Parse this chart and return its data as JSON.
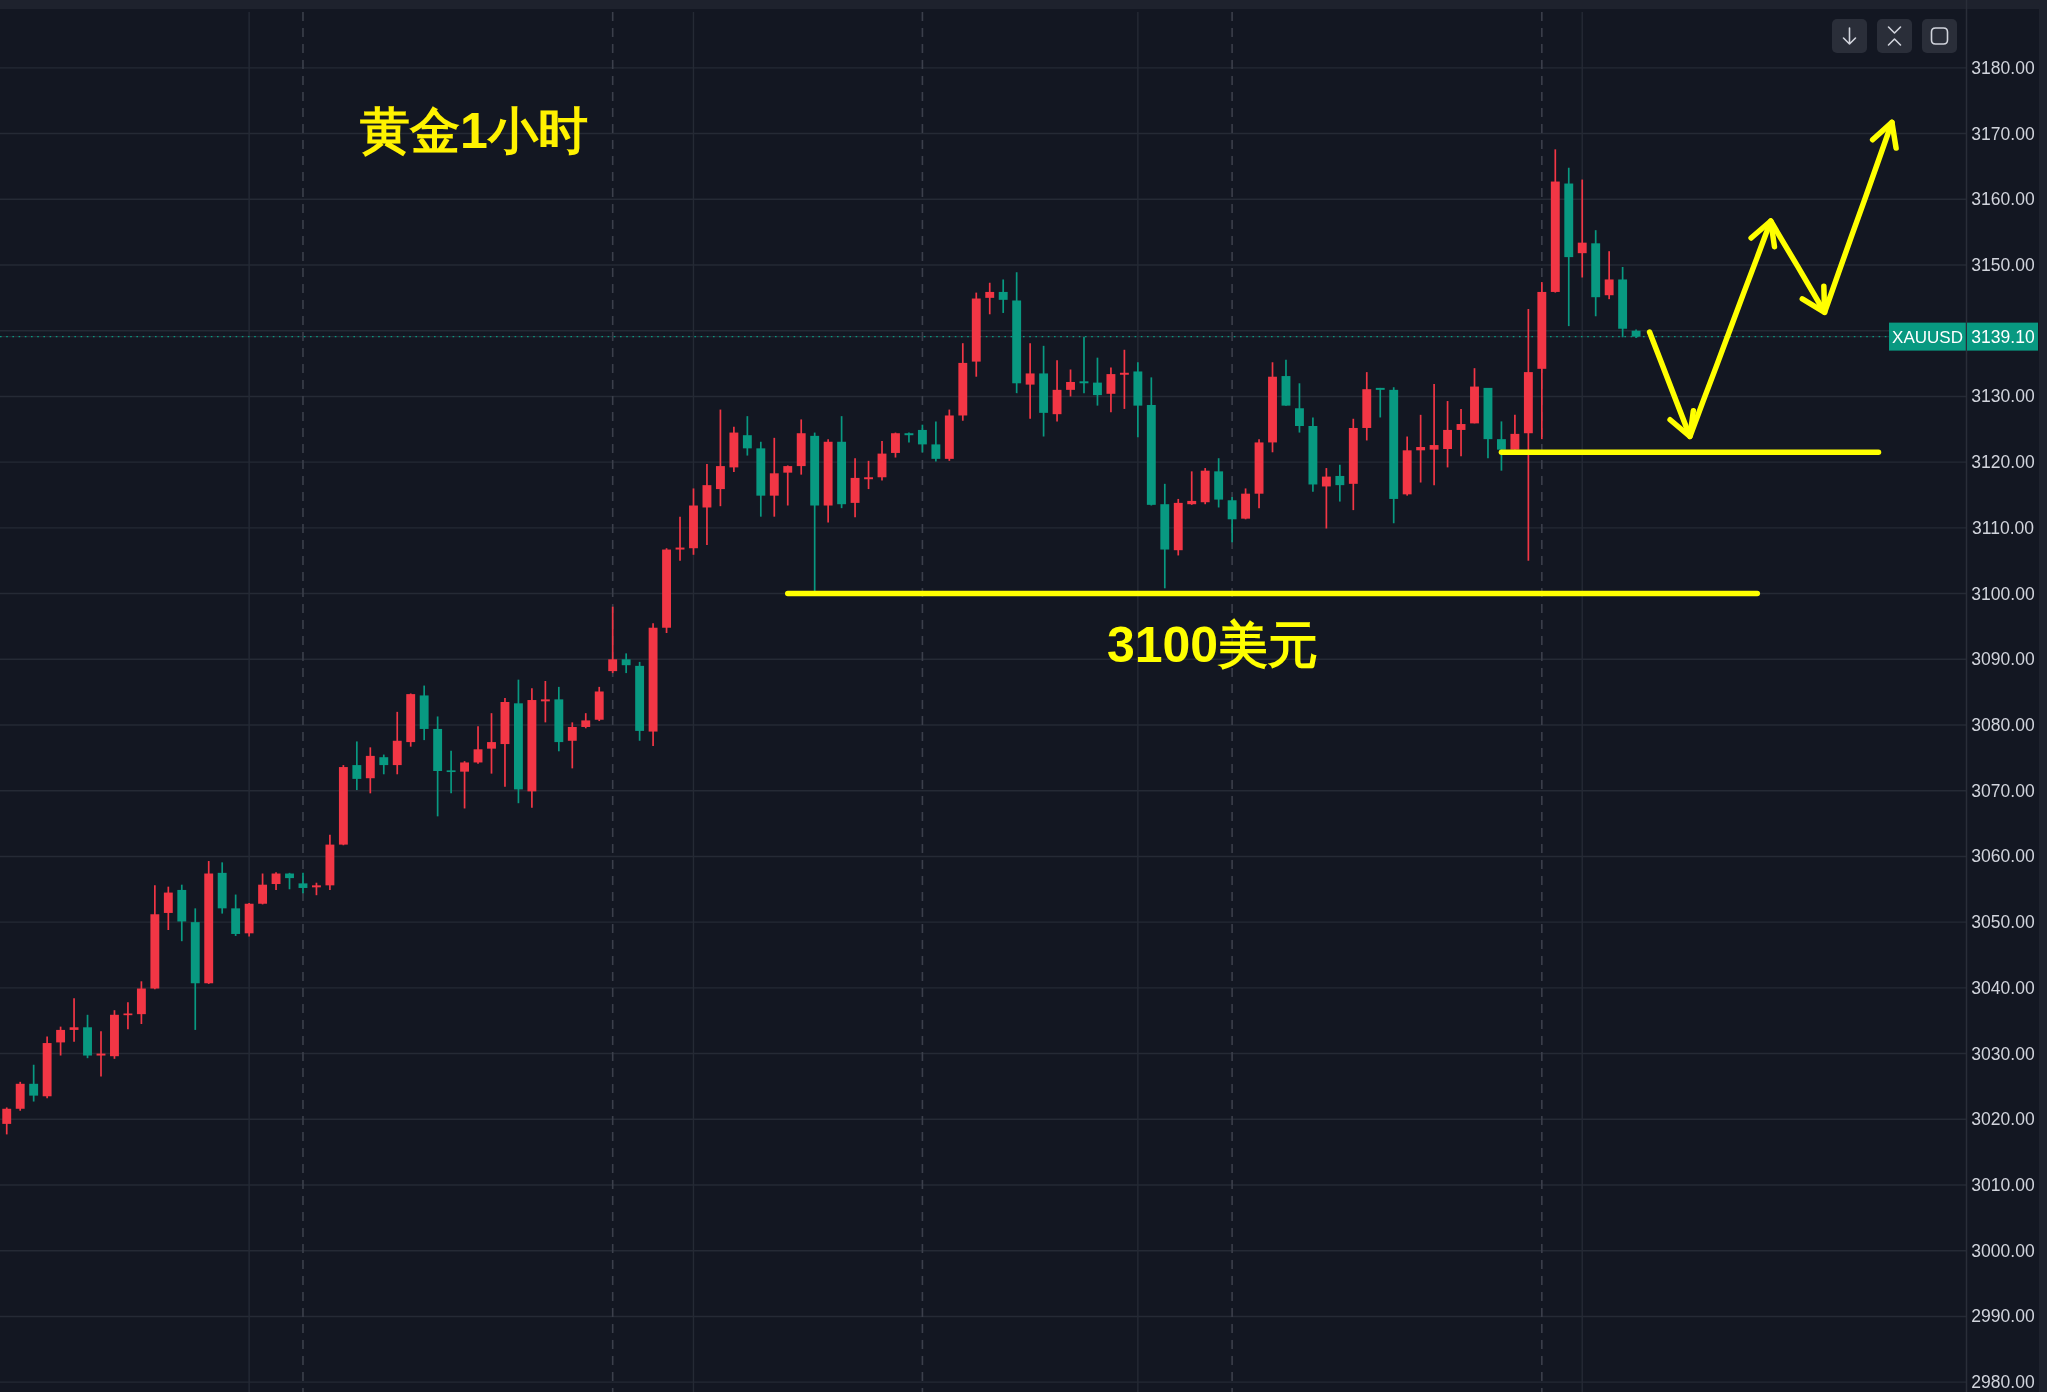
{
  "chart_data": {
    "type": "candlestick",
    "title": "黄金1小时",
    "categories": [
      null,
      null,
      null,
      null,
      null,
      null,
      null,
      null,
      null,
      null,
      null,
      null,
      null,
      null,
      null,
      null,
      null,
      null,
      null,
      null,
      null,
      null,
      null,
      null,
      null,
      null,
      null,
      null,
      null,
      null,
      null,
      null,
      null,
      null,
      null,
      null,
      null,
      null,
      null,
      null,
      null,
      null,
      null,
      null,
      null,
      null,
      null,
      null,
      null,
      null,
      null,
      null,
      null,
      null,
      null,
      null,
      null,
      null,
      null,
      null,
      null,
      null,
      null,
      null,
      null,
      null,
      null,
      null,
      null,
      null,
      null,
      null,
      null,
      null,
      null,
      null,
      null,
      null,
      null,
      null,
      null,
      null,
      null,
      null,
      null,
      null,
      null,
      null,
      null,
      null,
      null,
      null,
      null,
      null,
      null,
      null,
      null,
      null,
      null,
      null,
      null,
      null,
      null,
      null,
      null,
      null,
      null,
      null,
      null,
      null,
      null,
      null,
      null,
      null,
      null,
      null,
      null,
      null,
      null,
      null,
      null,
      null,
      null,
      null,
      null,
      null,
      null,
      null,
      null,
      null,
      null,
      null,
      null,
      null,
      null,
      null,
      null,
      null,
      null,
      null,
      null,
      null,
      null,
      null,
      null,
      null
    ],
    "ohlc": [
      [
        3019.3,
        3021.8,
        3017.7,
        3021.6
      ],
      [
        3021.6,
        3025.7,
        3021.3,
        3025.4
      ],
      [
        3025.4,
        3028.3,
        3022.7,
        3023.6
      ],
      [
        3023.5,
        3032.6,
        3023.2,
        3031.6
      ],
      [
        3031.7,
        3034.1,
        3029.7,
        3033.6
      ],
      [
        3033.6,
        3038.4,
        3031.8,
        3034.0
      ],
      [
        3034.0,
        3035.9,
        3029.3,
        3029.7
      ],
      [
        3029.7,
        3033.4,
        3026.5,
        3030.0
      ],
      [
        3029.6,
        3036.6,
        3029.2,
        3035.9
      ],
      [
        3035.9,
        3037.8,
        3033.7,
        3036.1
      ],
      [
        3036.0,
        3041.0,
        3034.5,
        3039.9
      ],
      [
        3039.9,
        3055.6,
        3039.8,
        3051.2
      ],
      [
        3051.4,
        3055.4,
        3048.8,
        3054.5
      ],
      [
        3054.9,
        3055.7,
        3047.1,
        3050.1
      ],
      [
        3050.0,
        3052.1,
        3033.6,
        3040.7
      ],
      [
        3040.7,
        3059.3,
        3040.6,
        3057.4
      ],
      [
        3057.5,
        3059.1,
        3051.3,
        3052.1
      ],
      [
        3052.1,
        3054.2,
        3047.9,
        3048.2
      ],
      [
        3048.3,
        3052.9,
        3047.8,
        3052.8
      ],
      [
        3052.8,
        3057.4,
        3052.7,
        3055.7
      ],
      [
        3055.8,
        3057.6,
        3054.9,
        3057.4
      ],
      [
        3057.4,
        3057.5,
        3055.0,
        3056.7
      ],
      [
        3055.9,
        3057.5,
        3054.4,
        3055.2
      ],
      [
        3055.3,
        3056.0,
        3054.1,
        3055.6
      ],
      [
        3055.6,
        3063.3,
        3054.9,
        3061.8
      ],
      [
        3061.8,
        3073.9,
        3061.7,
        3073.6
      ],
      [
        3073.9,
        3077.5,
        3070.1,
        3071.8
      ],
      [
        3071.9,
        3076.6,
        3069.6,
        3075.3
      ],
      [
        3075.1,
        3075.5,
        3072.5,
        3073.9
      ],
      [
        3073.9,
        3082.0,
        3072.5,
        3077.6
      ],
      [
        3077.4,
        3084.8,
        3076.7,
        3084.7
      ],
      [
        3084.5,
        3086.0,
        3077.7,
        3079.4
      ],
      [
        3079.4,
        3081.3,
        3066.1,
        3073.0
      ],
      [
        3073.1,
        3076.1,
        3069.6,
        3072.9
      ],
      [
        3072.9,
        3074.5,
        3067.3,
        3074.3
      ],
      [
        3074.3,
        3079.8,
        3074.1,
        3076.3
      ],
      [
        3076.4,
        3081.8,
        3072.6,
        3077.4
      ],
      [
        3077.1,
        3084.1,
        3070.6,
        3083.5
      ],
      [
        3083.3,
        3086.9,
        3068.1,
        3070.2
      ],
      [
        3069.9,
        3085.6,
        3067.4,
        3083.8
      ],
      [
        3083.6,
        3086.7,
        3080.4,
        3083.9
      ],
      [
        3083.9,
        3085.8,
        3076.0,
        3077.4
      ],
      [
        3077.6,
        3080.4,
        3073.4,
        3079.7
      ],
      [
        3079.7,
        3081.8,
        3079.5,
        3080.7
      ],
      [
        3080.8,
        3085.8,
        3080.6,
        3085.1
      ],
      [
        3088.2,
        3098.0,
        3087.9,
        3090.0
      ],
      [
        3090.0,
        3090.9,
        3087.9,
        3089.1
      ],
      [
        3089.0,
        3089.6,
        3077.6,
        3079.1
      ],
      [
        3079.0,
        3095.5,
        3076.8,
        3094.8
      ],
      [
        3094.8,
        3106.9,
        3094.0,
        3106.7
      ],
      [
        3106.7,
        3111.7,
        3105.0,
        3107.0
      ],
      [
        3106.9,
        3116.0,
        3105.9,
        3113.4
      ],
      [
        3113.1,
        3119.7,
        3107.4,
        3116.5
      ],
      [
        3115.9,
        3128.0,
        3113.3,
        3119.4
      ],
      [
        3119.2,
        3125.4,
        3118.5,
        3124.5
      ],
      [
        3124.1,
        3127.0,
        3121.0,
        3122.1
      ],
      [
        3122.1,
        3123.1,
        3111.7,
        3114.9
      ],
      [
        3114.9,
        3123.7,
        3111.7,
        3118.3
      ],
      [
        3118.4,
        3119.5,
        3113.4,
        3119.4
      ],
      [
        3119.4,
        3126.5,
        3118.1,
        3124.4
      ],
      [
        3124.0,
        3124.5,
        3100.2,
        3113.4
      ],
      [
        3113.4,
        3123.5,
        3110.8,
        3123.1
      ],
      [
        3123.1,
        3127.0,
        3113.0,
        3113.6
      ],
      [
        3113.8,
        3120.6,
        3111.6,
        3117.6
      ],
      [
        3117.4,
        3120.2,
        3115.9,
        3117.7
      ],
      [
        3117.7,
        3123.2,
        3117.2,
        3121.3
      ],
      [
        3121.4,
        3124.5,
        3120.7,
        3124.4
      ],
      [
        3124.4,
        3124.5,
        3123.0,
        3124.1
      ],
      [
        3124.9,
        3125.7,
        3121.5,
        3122.7
      ],
      [
        3122.7,
        3126.2,
        3120.1,
        3120.5
      ],
      [
        3120.5,
        3128.0,
        3120.2,
        3127.1
      ],
      [
        3127.1,
        3138.1,
        3126.3,
        3135.1
      ],
      [
        3135.3,
        3145.8,
        3133.0,
        3144.9
      ],
      [
        3145.0,
        3147.3,
        3142.5,
        3145.9
      ],
      [
        3145.9,
        3147.8,
        3142.7,
        3144.7
      ],
      [
        3144.6,
        3148.9,
        3130.5,
        3132.0
      ],
      [
        3131.8,
        3138.1,
        3126.6,
        3133.5
      ],
      [
        3133.5,
        3137.7,
        3123.9,
        3127.5
      ],
      [
        3127.3,
        3135.5,
        3126.2,
        3131.0
      ],
      [
        3131.0,
        3134.1,
        3130.0,
        3132.2
      ],
      [
        3132.3,
        3139.1,
        3130.5,
        3132.0
      ],
      [
        3132.1,
        3135.9,
        3128.6,
        3130.2
      ],
      [
        3130.4,
        3134.4,
        3127.6,
        3133.4
      ],
      [
        3133.3,
        3137.1,
        3128.1,
        3133.6
      ],
      [
        3133.8,
        3135.2,
        3123.8,
        3128.6
      ],
      [
        3128.7,
        3132.9,
        3113.4,
        3113.5
      ],
      [
        3113.6,
        3116.7,
        3100.8,
        3106.7
      ],
      [
        3106.6,
        3114.4,
        3105.8,
        3113.8
      ],
      [
        3113.6,
        3118.6,
        3113.5,
        3114.1
      ],
      [
        3113.9,
        3119.1,
        3113.6,
        3118.7
      ],
      [
        3118.6,
        3120.6,
        3113.1,
        3114.3
      ],
      [
        3114.2,
        3114.7,
        3107.8,
        3111.3
      ],
      [
        3111.4,
        3116.0,
        3111.3,
        3115.2
      ],
      [
        3115.2,
        3123.5,
        3113.0,
        3123.0
      ],
      [
        3123.0,
        3135.2,
        3121.5,
        3133.0
      ],
      [
        3133.1,
        3135.6,
        3128.6,
        3128.6
      ],
      [
        3128.2,
        3132.0,
        3124.5,
        3125.5
      ],
      [
        3125.5,
        3126.8,
        3115.5,
        3116.6
      ],
      [
        3116.3,
        3119.1,
        3109.9,
        3117.8
      ],
      [
        3117.9,
        3119.6,
        3114.0,
        3116.5
      ],
      [
        3116.7,
        3126.6,
        3112.7,
        3125.2
      ],
      [
        3125.2,
        3133.7,
        3123.3,
        3131.1
      ],
      [
        3131.3,
        3131.3,
        3126.8,
        3131.0
      ],
      [
        3131.0,
        3131.4,
        3110.7,
        3114.4
      ],
      [
        3115.1,
        3123.9,
        3114.9,
        3121.8
      ],
      [
        3121.8,
        3127.2,
        3116.9,
        3122.3
      ],
      [
        3121.9,
        3131.9,
        3116.5,
        3122.6
      ],
      [
        3122.0,
        3129.3,
        3119.2,
        3124.9
      ],
      [
        3124.9,
        3128.1,
        3120.9,
        3125.8
      ],
      [
        3125.9,
        3134.3,
        3125.9,
        3131.5
      ],
      [
        3131.3,
        3131.3,
        3120.6,
        3123.5
      ],
      [
        3123.5,
        3126.2,
        3118.7,
        3121.9
      ],
      [
        3121.9,
        3127.2,
        3121.9,
        3124.3
      ],
      [
        3124.4,
        3143.3,
        3105.0,
        3133.7
      ],
      [
        3134.2,
        3147.4,
        3123.5,
        3145.9
      ],
      [
        3145.9,
        3167.6,
        3145.8,
        3162.7
      ],
      [
        3162.4,
        3164.8,
        3140.7,
        3151.2
      ],
      [
        3151.8,
        3163.0,
        3148.1,
        3153.4
      ],
      [
        3153.3,
        3155.3,
        3142.2,
        3145.1
      ],
      [
        3145.4,
        3152.1,
        3144.8,
        3147.8
      ],
      [
        3147.8,
        3149.7,
        3139.0,
        3140.3
      ],
      [
        3140.0,
        3140.2,
        3138.9,
        3139.1
      ],
      null,
      null,
      null,
      null,
      null,
      null,
      null,
      null,
      null,
      null,
      null,
      null,
      null,
      null,
      null,
      null,
      null,
      null,
      null,
      null,
      null,
      null,
      null,
      null
    ],
    "colors": [
      "#f23645",
      "#f23645",
      "#089981",
      "#f23645",
      "#f23645",
      "#f23645",
      "#089981",
      "#f23645",
      "#f23645",
      "#f23645",
      "#f23645",
      "#f23645",
      "#f23645",
      "#089981",
      "#089981",
      "#f23645",
      "#089981",
      "#089981",
      "#f23645",
      "#f23645",
      "#f23645",
      "#089981",
      "#089981",
      "#f23645",
      "#f23645",
      "#f23645",
      "#089981",
      "#f23645",
      "#089981",
      "#f23645",
      "#f23645",
      "#089981",
      "#089981",
      "#089981",
      "#f23645",
      "#f23645",
      "#f23645",
      "#f23645",
      "#089981",
      "#f23645",
      "#f23645",
      "#089981",
      "#f23645",
      "#f23645",
      "#f23645",
      "#f23645",
      "#089981",
      "#089981",
      "#f23645",
      "#f23645",
      "#f23645",
      "#f23645",
      "#f23645",
      "#f23645",
      "#f23645",
      "#089981",
      "#089981",
      "#f23645",
      "#f23645",
      "#f23645",
      "#089981",
      "#f23645",
      "#089981",
      "#f23645",
      "#f23645",
      "#f23645",
      "#f23645",
      "#089981",
      "#089981",
      "#089981",
      "#f23645",
      "#f23645",
      "#f23645",
      "#f23645",
      "#089981",
      "#089981",
      "#f23645",
      "#089981",
      "#f23645",
      "#f23645",
      "#089981",
      "#089981",
      "#f23645",
      "#f23645",
      "#089981",
      "#089981",
      "#089981",
      "#f23645",
      "#f23645",
      "#f23645",
      "#089981",
      "#089981",
      "#f23645",
      "#f23645",
      "#f23645",
      "#089981",
      "#089981",
      "#089981",
      "#f23645",
      "#089981",
      "#f23645",
      "#f23645",
      "#089981",
      "#089981",
      "#f23645",
      "#f23645",
      "#f23645",
      "#f23645",
      "#f23645",
      "#f23645",
      "#089981",
      "#089981",
      "#f23645",
      "#f23645",
      "#f23645",
      "#f23645",
      "#089981",
      "#f23645",
      "#089981",
      "#f23645",
      "#089981",
      "#089981",
      null,
      null,
      null,
      null,
      null,
      null,
      null,
      null,
      null,
      null,
      null,
      null,
      null,
      null,
      null,
      null,
      null,
      null,
      null,
      null,
      null,
      null,
      null,
      null
    ],
    "series": [
      {
        "type": "line",
        "name": "3100美元",
        "color": "#ffff00",
        "values": [
          null,
          null,
          null,
          null,
          null,
          null,
          null,
          null,
          null,
          null,
          null,
          null,
          null,
          null,
          null,
          null,
          null,
          null,
          null,
          null,
          null,
          null,
          null,
          null,
          null,
          null,
          null,
          null,
          null,
          null,
          null,
          null,
          null,
          null,
          null,
          null,
          null,
          null,
          null,
          null,
          null,
          null,
          null,
          null,
          null,
          null,
          null,
          null,
          null,
          null,
          null,
          null,
          null,
          null,
          null,
          null,
          null,
          null,
          3100,
          3100,
          3100,
          3100,
          3100,
          3100,
          3100,
          3100,
          3100,
          3100,
          3100,
          3100,
          3100,
          3100,
          3100,
          3100,
          3100,
          3100,
          3100,
          3100,
          3100,
          3100,
          3100,
          3100,
          3100,
          3100,
          3100,
          3100,
          3100,
          3100,
          3100,
          3100,
          3100,
          3100,
          3100,
          3100,
          3100,
          3100,
          3100,
          3100,
          3100,
          3100,
          3100,
          3100,
          3100,
          3100,
          3100,
          3100,
          3100,
          3100,
          3100,
          3100,
          3100,
          3100,
          3100,
          3100,
          3100,
          3100,
          3100,
          3100,
          3100,
          3100,
          3100,
          3100,
          3100,
          3100,
          3100,
          3100,
          3100,
          3100,
          3100,
          3100,
          3100,
          null,
          null,
          null,
          null,
          null,
          null,
          null,
          null,
          null,
          null,
          null,
          null,
          null,
          null,
          null
        ]
      },
      {
        "type": "line",
        "color": "#ffff00",
        "values": [
          null,
          null,
          null,
          null,
          null,
          null,
          null,
          null,
          null,
          null,
          null,
          null,
          null,
          null,
          null,
          null,
          null,
          null,
          null,
          null,
          null,
          null,
          null,
          null,
          null,
          null,
          null,
          null,
          null,
          null,
          null,
          null,
          null,
          null,
          null,
          null,
          null,
          null,
          null,
          null,
          null,
          null,
          null,
          null,
          null,
          null,
          null,
          null,
          null,
          null,
          null,
          null,
          null,
          null,
          null,
          null,
          null,
          null,
          null,
          null,
          null,
          null,
          null,
          null,
          null,
          null,
          null,
          null,
          null,
          null,
          null,
          null,
          null,
          null,
          null,
          null,
          null,
          null,
          null,
          null,
          null,
          null,
          null,
          null,
          null,
          null,
          null,
          null,
          null,
          null,
          null,
          null,
          null,
          null,
          null,
          null,
          null,
          null,
          null,
          null,
          null,
          null,
          null,
          null,
          null,
          null,
          null,
          null,
          null,
          null,
          null,
          3121.5,
          3121.5,
          3121.5,
          3121.5,
          3121.5,
          3121.5,
          3121.5,
          3121.5,
          3121.5,
          3121.5,
          3121.5,
          3121.5,
          3121.5,
          3121.5,
          3121.5,
          3121.5,
          3121.5,
          3121.5,
          3121.5,
          3121.5,
          3121.5,
          3121.5,
          3121.5,
          3121.5,
          3121.5,
          3121.5,
          3121.5,
          3121.5,
          3121.5,
          null,
          null,
          null,
          null,
          null,
          null
        ]
      },
      {
        "type": "line",
        "color": "#ffff00",
        "values": [
          null,
          null,
          null,
          null,
          null,
          null,
          null,
          null,
          null,
          null,
          null,
          null,
          null,
          null,
          null,
          null,
          null,
          null,
          null,
          null,
          null,
          null,
          null,
          null,
          null,
          null,
          null,
          null,
          null,
          null,
          null,
          null,
          null,
          null,
          null,
          null,
          null,
          null,
          null,
          null,
          null,
          null,
          null,
          null,
          null,
          null,
          null,
          null,
          null,
          null,
          null,
          null,
          null,
          null,
          null,
          null,
          null,
          null,
          null,
          null,
          null,
          null,
          null,
          null,
          null,
          null,
          null,
          null,
          null,
          null,
          null,
          null,
          null,
          null,
          null,
          null,
          null,
          null,
          null,
          null,
          null,
          null,
          null,
          null,
          null,
          null,
          null,
          null,
          null,
          null,
          null,
          null,
          null,
          null,
          null,
          null,
          null,
          null,
          null,
          null,
          null,
          null,
          null,
          null,
          null,
          null,
          null,
          null,
          null,
          null,
          null,
          null,
          null,
          null,
          null,
          null,
          null,
          null,
          null,
          null,
          null,
          null,
          3139.8,
          3134.5,
          3129.2,
          3123.9,
          3129.4,
          3134.8,
          3140.3,
          3145.8,
          3151.2,
          3156.7,
          3153.2,
          3149.8,
          3146.3,
          3142.8,
          3148.6,
          3154.4,
          3160.1,
          3165.9,
          3171.7,
          null,
          null,
          null,
          null,
          null
        ]
      }
    ],
    "ylim": [
      2978.5,
      3188.5
    ],
    "yticks": [
      {
        "value": 2980,
        "label": "2980.00"
      },
      {
        "value": 2990,
        "label": "2990.00"
      },
      {
        "value": 3000,
        "label": "3000.00"
      },
      {
        "value": 3010,
        "label": "3010.00"
      },
      {
        "value": 3020,
        "label": "3020.00"
      },
      {
        "value": 3030,
        "label": "3030.00"
      },
      {
        "value": 3040,
        "label": "3040.00"
      },
      {
        "value": 3050,
        "label": "3050.00"
      },
      {
        "value": 3060,
        "label": "3060.00"
      },
      {
        "value": 3070,
        "label": "3070.00"
      },
      {
        "value": 3080,
        "label": "3080.00"
      },
      {
        "value": 3090,
        "label": "3090.00"
      },
      {
        "value": 3100,
        "label": "3100.00"
      },
      {
        "value": 3110,
        "label": "3110.00"
      },
      {
        "value": 3120,
        "label": "3120.00"
      },
      {
        "value": 3130,
        "label": "3130.00"
      },
      {
        "value": 3139.1,
        "label": "3139.10"
      },
      {
        "value": 3140,
        "label": null
      },
      {
        "value": 3150,
        "label": "3150.00"
      },
      {
        "value": 3160,
        "label": "3160.00"
      },
      {
        "value": 3170,
        "label": "3170.00"
      },
      {
        "value": 3180,
        "label": "3180.00"
      }
    ],
    "ref_lines": [
      {
        "axis": "y",
        "value": 3139.1,
        "label": "XAUUSD",
        "color": "#089981",
        "line_style": "dotted"
      }
    ],
    "grid": true,
    "tick_labels": "y"
  }
}
